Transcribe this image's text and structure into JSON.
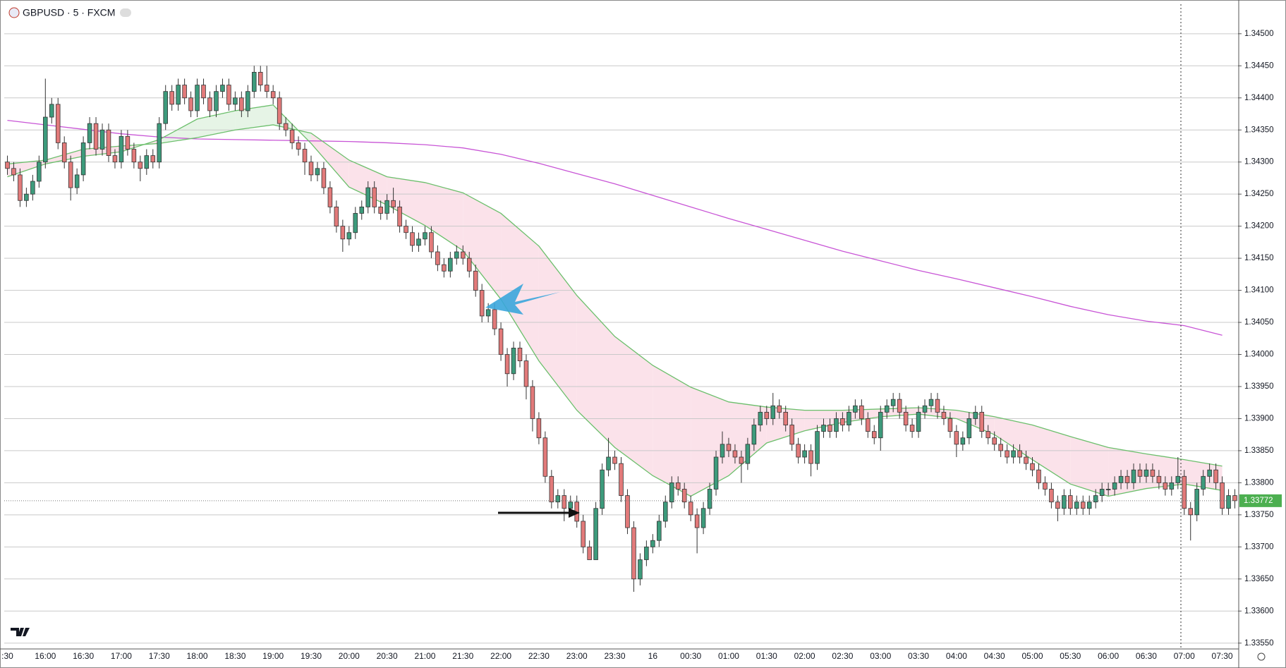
{
  "chart_data": {
    "type": "candlestick",
    "title": "GBPUSD · 5 · FXCM",
    "categories": [
      ":30",
      null,
      null,
      null,
      null,
      null,
      "16:00",
      null,
      null,
      null,
      null,
      null,
      "16:30",
      null,
      null,
      null,
      null,
      null,
      "17:00",
      null,
      null,
      null,
      null,
      null,
      "17:30",
      null,
      null,
      null,
      null,
      null,
      "18:00",
      null,
      null,
      null,
      null,
      null,
      "18:30",
      null,
      null,
      null,
      null,
      null,
      "19:00",
      null,
      null,
      null,
      null,
      null,
      "19:30",
      null,
      null,
      null,
      null,
      null,
      "20:00",
      null,
      null,
      null,
      null,
      null,
      "20:30",
      null,
      null,
      null,
      null,
      null,
      "21:00",
      null,
      null,
      null,
      null,
      null,
      "21:30",
      null,
      null,
      null,
      null,
      null,
      "22:00",
      null,
      null,
      null,
      null,
      null,
      "22:30",
      null,
      null,
      null,
      null,
      null,
      "23:00",
      null,
      null,
      null,
      null,
      null,
      "23:30",
      null,
      null,
      null,
      null,
      null,
      "16",
      null,
      null,
      null,
      null,
      null,
      "00:30",
      null,
      null,
      null,
      null,
      null,
      "01:00",
      null,
      null,
      null,
      null,
      null,
      "01:30",
      null,
      null,
      null,
      null,
      null,
      "02:00",
      null,
      null,
      null,
      null,
      null,
      "02:30",
      null,
      null,
      null,
      null,
      null,
      "03:00",
      null,
      null,
      null,
      null,
      null,
      "03:30",
      null,
      null,
      null,
      null,
      null,
      "04:00",
      null,
      null,
      null,
      null,
      null,
      "04:30",
      null,
      null,
      null,
      null,
      null,
      "05:00",
      null,
      null,
      null,
      null,
      null,
      "05:30",
      null,
      null,
      null,
      null,
      null,
      "06:00",
      null,
      null,
      null,
      null,
      null,
      "06:30",
      null,
      null,
      null,
      null,
      null,
      "07:00",
      null,
      null,
      null,
      null,
      null,
      "07:30",
      null,
      null
    ],
    "open": [
      1.343,
      1.3429,
      1.3428,
      1.3424,
      1.3425,
      1.3427,
      1.343,
      1.3437,
      1.3439,
      1.3433,
      1.343,
      1.3426,
      1.3428,
      1.3433,
      1.3436,
      1.3432,
      1.3435,
      1.3431,
      1.343,
      1.3434,
      1.3432,
      1.343,
      1.3429,
      1.3431,
      1.343,
      1.3436,
      1.3441,
      1.3439,
      1.3442,
      1.344,
      1.3438,
      1.3442,
      1.344,
      1.3438,
      1.3441,
      1.3442,
      1.3439,
      1.344,
      1.3438,
      1.3441,
      1.3444,
      1.3442,
      1.3441,
      1.344,
      1.3436,
      1.3435,
      1.3433,
      1.3432,
      1.343,
      1.3428,
      1.3429,
      1.3426,
      1.3423,
      1.342,
      1.3418,
      1.3419,
      1.3422,
      1.3423,
      1.3426,
      1.3423,
      1.3422,
      1.3424,
      1.3423,
      1.342,
      1.3419,
      1.3417,
      1.3418,
      1.3419,
      1.3416,
      1.3414,
      1.3413,
      1.3415,
      1.3416,
      1.3415,
      1.3413,
      1.341,
      1.3406,
      1.3407,
      1.3404,
      1.34,
      1.3397,
      1.3401,
      1.3399,
      1.3395,
      1.339,
      1.3387,
      1.3381,
      1.3377,
      1.3378,
      1.3376,
      1.3377,
      1.3374,
      1.337,
      1.3368,
      1.3376,
      1.3382,
      1.3384,
      1.3383,
      1.3378,
      1.3373,
      1.3365,
      1.3368,
      1.337,
      1.3371,
      1.3374,
      1.3377,
      1.338,
      1.3379,
      1.3377,
      1.3375,
      1.3373,
      1.3376,
      1.3379,
      1.3384,
      1.3386,
      1.3385,
      1.3384,
      1.3383,
      1.3386,
      1.3389,
      1.3391,
      1.339,
      1.3392,
      1.3391,
      1.3389,
      1.3386,
      1.3384,
      1.3385,
      1.3383,
      1.3388,
      1.3389,
      1.3388,
      1.339,
      1.3389,
      1.3391,
      1.3392,
      1.339,
      1.3388,
      1.3387,
      1.3391,
      1.3392,
      1.3393,
      1.3391,
      1.3389,
      1.3388,
      1.3391,
      1.3392,
      1.3393,
      1.3391,
      1.339,
      1.3388,
      1.3386,
      1.3387,
      1.339,
      1.3391,
      1.3388,
      1.3387,
      1.3386,
      1.3385,
      1.3384,
      1.3385,
      1.3384,
      1.3383,
      1.3382,
      1.338,
      1.3379,
      1.3377,
      1.3376,
      1.3378,
      1.3376,
      1.3377,
      1.3376,
      1.3377,
      1.3378,
      1.3379,
      1.3379,
      1.338,
      1.3381,
      1.338,
      1.3382,
      1.3381,
      1.3382,
      1.3381,
      1.338,
      1.3379,
      1.338,
      1.3381,
      1.3376,
      1.3375,
      1.3379,
      1.3381,
      1.3382,
      1.338,
      1.3376,
      1.3378
    ],
    "high": [
      1.3431,
      1.343,
      1.3429,
      1.3426,
      1.3428,
      1.3431,
      1.3443,
      1.344,
      1.344,
      1.3434,
      1.3431,
      1.3429,
      1.3434,
      1.3437,
      1.3437,
      1.3436,
      1.3436,
      1.3432,
      1.3435,
      1.3435,
      1.3433,
      1.3431,
      1.3432,
      1.3432,
      1.3437,
      1.3442,
      1.3442,
      1.3443,
      1.3443,
      1.3441,
      1.3443,
      1.3443,
      1.3441,
      1.3442,
      1.3443,
      1.3443,
      1.3441,
      1.3441,
      1.3442,
      1.3445,
      1.3445,
      1.3445,
      1.3442,
      1.3441,
      1.3437,
      1.3436,
      1.3434,
      1.3433,
      1.3431,
      1.343,
      1.343,
      1.3427,
      1.3424,
      1.3421,
      1.342,
      1.3423,
      1.3424,
      1.3427,
      1.3427,
      1.3424,
      1.3425,
      1.3426,
      1.3424,
      1.3421,
      1.342,
      1.3419,
      1.342,
      1.342,
      1.3417,
      1.3415,
      1.3416,
      1.3417,
      1.3417,
      1.3416,
      1.3414,
      1.3411,
      1.3408,
      1.3408,
      1.3405,
      1.3401,
      1.3402,
      1.3402,
      1.34,
      1.3396,
      1.3391,
      1.3388,
      1.3382,
      1.3379,
      1.3379,
      1.3378,
      1.3378,
      1.3375,
      1.3371,
      1.3377,
      1.3383,
      1.3387,
      1.3385,
      1.3384,
      1.3379,
      1.3374,
      1.3369,
      1.3371,
      1.3372,
      1.3375,
      1.3378,
      1.3381,
      1.3381,
      1.338,
      1.3378,
      1.3376,
      1.3377,
      1.338,
      1.3385,
      1.3388,
      1.3387,
      1.3386,
      1.3385,
      1.3387,
      1.339,
      1.3392,
      1.3392,
      1.3394,
      1.3393,
      1.3392,
      1.339,
      1.3387,
      1.3386,
      1.3386,
      1.3389,
      1.339,
      1.339,
      1.3391,
      1.3391,
      1.3392,
      1.3393,
      1.3393,
      1.3391,
      1.3389,
      1.3392,
      1.3393,
      1.3394,
      1.3394,
      1.3392,
      1.339,
      1.3392,
      1.3393,
      1.3394,
      1.3394,
      1.3392,
      1.3391,
      1.3389,
      1.3388,
      1.3391,
      1.3392,
      1.3392,
      1.3389,
      1.3388,
      1.3387,
      1.3386,
      1.3386,
      1.3386,
      1.3385,
      1.3384,
      1.3383,
      1.3381,
      1.338,
      1.3378,
      1.3379,
      1.3379,
      1.3378,
      1.3378,
      1.3378,
      1.3379,
      1.338,
      1.338,
      1.3381,
      1.3382,
      1.3382,
      1.3383,
      1.3383,
      1.3383,
      1.3383,
      1.3382,
      1.3381,
      1.3381,
      1.3384,
      1.3382,
      1.3377,
      1.338,
      1.3382,
      1.3383,
      1.3383,
      1.3381,
      1.3379,
      1.3379
    ],
    "low": [
      1.3428,
      1.3427,
      1.3423,
      1.3423,
      1.3424,
      1.3426,
      1.3429,
      1.3436,
      1.3432,
      1.3429,
      1.3424,
      1.3425,
      1.3427,
      1.3432,
      1.3431,
      1.3431,
      1.343,
      1.3429,
      1.3429,
      1.3431,
      1.3429,
      1.3427,
      1.3428,
      1.3429,
      1.3429,
      1.3435,
      1.3438,
      1.3438,
      1.3439,
      1.3437,
      1.3437,
      1.3439,
      1.3437,
      1.3437,
      1.344,
      1.3438,
      1.3438,
      1.3437,
      1.3437,
      1.344,
      1.3441,
      1.344,
      1.3439,
      1.3435,
      1.3434,
      1.3432,
      1.3431,
      1.3428,
      1.3427,
      1.3427,
      1.3425,
      1.3422,
      1.3419,
      1.3416,
      1.3417,
      1.3418,
      1.3421,
      1.3422,
      1.3422,
      1.3421,
      1.3421,
      1.3422,
      1.3419,
      1.3418,
      1.3416,
      1.3416,
      1.3417,
      1.3415,
      1.3413,
      1.3412,
      1.3412,
      1.3414,
      1.3414,
      1.3412,
      1.3409,
      1.3405,
      1.3405,
      1.3403,
      1.3399,
      1.3395,
      1.3396,
      1.3398,
      1.3393,
      1.3388,
      1.3386,
      1.338,
      1.3376,
      1.3376,
      1.3374,
      1.3375,
      1.3373,
      1.3369,
      1.3368,
      1.3368,
      1.3375,
      1.3381,
      1.3382,
      1.3377,
      1.3372,
      1.3363,
      1.3364,
      1.3367,
      1.3369,
      1.337,
      1.3373,
      1.3376,
      1.3378,
      1.3376,
      1.3374,
      1.3369,
      1.3372,
      1.3375,
      1.3378,
      1.3383,
      1.3384,
      1.3383,
      1.338,
      1.3382,
      1.3385,
      1.3388,
      1.3389,
      1.3389,
      1.339,
      1.3388,
      1.3385,
      1.3383,
      1.3383,
      1.3381,
      1.3382,
      1.3387,
      1.3387,
      1.3387,
      1.3388,
      1.3388,
      1.339,
      1.3389,
      1.3387,
      1.3386,
      1.3385,
      1.339,
      1.3391,
      1.339,
      1.3388,
      1.3387,
      1.3387,
      1.339,
      1.3391,
      1.339,
      1.3389,
      1.3387,
      1.3384,
      1.3385,
      1.3386,
      1.3389,
      1.3387,
      1.3386,
      1.3385,
      1.3384,
      1.3383,
      1.3383,
      1.3383,
      1.3382,
      1.3381,
      1.3379,
      1.3378,
      1.3376,
      1.3374,
      1.3375,
      1.3375,
      1.3375,
      1.3375,
      1.3375,
      1.3376,
      1.3377,
      1.3378,
      1.3378,
      1.3379,
      1.3379,
      1.3379,
      1.338,
      1.338,
      1.338,
      1.3379,
      1.3378,
      1.3378,
      1.3379,
      1.3375,
      1.3371,
      1.3374,
      1.3378,
      1.338,
      1.3379,
      1.3375,
      1.3375,
      1.3376
    ],
    "close": [
      1.3429,
      1.3428,
      1.3424,
      1.3425,
      1.3427,
      1.343,
      1.3437,
      1.3439,
      1.3433,
      1.343,
      1.3426,
      1.3428,
      1.3433,
      1.3436,
      1.3432,
      1.3435,
      1.3431,
      1.343,
      1.3434,
      1.3432,
      1.343,
      1.3429,
      1.3431,
      1.343,
      1.3436,
      1.3441,
      1.3439,
      1.3442,
      1.344,
      1.3438,
      1.3442,
      1.344,
      1.3438,
      1.3441,
      1.3442,
      1.3439,
      1.344,
      1.3438,
      1.3441,
      1.3444,
      1.3442,
      1.3441,
      1.344,
      1.3436,
      1.3435,
      1.3433,
      1.3432,
      1.343,
      1.3428,
      1.3429,
      1.3426,
      1.3423,
      1.342,
      1.3418,
      1.3419,
      1.3422,
      1.3423,
      1.3426,
      1.3423,
      1.3422,
      1.3424,
      1.3423,
      1.342,
      1.3419,
      1.3417,
      1.3418,
      1.3419,
      1.3416,
      1.3414,
      1.3413,
      1.3415,
      1.3416,
      1.3415,
      1.3413,
      1.341,
      1.3406,
      1.3407,
      1.3404,
      1.34,
      1.3397,
      1.3401,
      1.3399,
      1.3395,
      1.339,
      1.3387,
      1.3381,
      1.3377,
      1.3378,
      1.3376,
      1.3377,
      1.3374,
      1.337,
      1.3368,
      1.3376,
      1.3382,
      1.3384,
      1.3383,
      1.3378,
      1.3373,
      1.3365,
      1.3368,
      1.337,
      1.3371,
      1.3374,
      1.3377,
      1.338,
      1.3379,
      1.3377,
      1.3375,
      1.3373,
      1.3376,
      1.3379,
      1.3384,
      1.3386,
      1.3385,
      1.3384,
      1.3383,
      1.3386,
      1.3389,
      1.3391,
      1.339,
      1.3392,
      1.3391,
      1.3389,
      1.3386,
      1.3384,
      1.3385,
      1.3383,
      1.3388,
      1.3389,
      1.3388,
      1.339,
      1.3389,
      1.3391,
      1.3392,
      1.339,
      1.3388,
      1.3387,
      1.3391,
      1.3392,
      1.3393,
      1.3391,
      1.3389,
      1.3388,
      1.3391,
      1.3392,
      1.3393,
      1.3391,
      1.339,
      1.3388,
      1.3386,
      1.3387,
      1.339,
      1.3391,
      1.3388,
      1.3387,
      1.3386,
      1.3385,
      1.3384,
      1.3385,
      1.3384,
      1.3383,
      1.3382,
      1.338,
      1.3379,
      1.3377,
      1.3376,
      1.3378,
      1.3376,
      1.3377,
      1.3376,
      1.3377,
      1.3378,
      1.3379,
      1.3379,
      1.338,
      1.3381,
      1.338,
      1.3382,
      1.3381,
      1.3382,
      1.3381,
      1.338,
      1.3379,
      1.338,
      1.3381,
      1.3376,
      1.3375,
      1.3379,
      1.3381,
      1.3382,
      1.338,
      1.3376,
      1.3378,
      1.33772
    ],
    "up_color": "#3d9b7c",
    "down_color": "#e27a7a",
    "wick_color": "#333333",
    "ylim": [
      1.33542,
      1.34546
    ],
    "yticks": [
      {
        "value": 1.3355,
        "label": "1.33550"
      },
      {
        "value": 1.336,
        "label": "1.33600"
      },
      {
        "value": 1.3365,
        "label": "1.33650"
      },
      {
        "value": 1.337,
        "label": "1.33700"
      },
      {
        "value": 1.3375,
        "label": "1.33750"
      },
      {
        "value": 1.338,
        "label": "1.33800"
      },
      {
        "value": 1.3385,
        "label": "1.33850"
      },
      {
        "value": 1.339,
        "label": "1.33900"
      },
      {
        "value": 1.3395,
        "label": "1.33950"
      },
      {
        "value": 1.34,
        "label": "1.34000"
      },
      {
        "value": 1.3405,
        "label": "1.34050"
      },
      {
        "value": 1.341,
        "label": "1.34100"
      },
      {
        "value": 1.3415,
        "label": "1.34150"
      },
      {
        "value": 1.342,
        "label": "1.34200"
      },
      {
        "value": 1.3425,
        "label": "1.34250"
      },
      {
        "value": 1.343,
        "label": "1.34300"
      },
      {
        "value": 1.3435,
        "label": "1.34350"
      },
      {
        "value": 1.344,
        "label": "1.34400"
      },
      {
        "value": 1.3445,
        "label": "1.34450"
      },
      {
        "value": 1.345,
        "label": "1.34500"
      }
    ],
    "grid": true,
    "last_price_label": "1.33772",
    "last_price_color": "#4caf50",
    "overlay_x": [
      ":30",
      "16:00",
      "16:30",
      "17:00",
      "17:30",
      "18:00",
      "18:30",
      "19:00",
      "19:30",
      "20:00",
      "20:30",
      "21:00",
      "21:30",
      "22:00",
      "22:30",
      "23:00",
      "23:30",
      "16",
      "00:30",
      "01:00",
      "01:30",
      "02:00",
      "02:30",
      "03:00",
      "03:30",
      "04:00",
      "04:30",
      "05:00",
      "05:30",
      "06:00",
      "06:30",
      "07:00",
      "07:30"
    ],
    "overlays": [
      {
        "color": "#c855d6",
        "values": [
          1.34365,
          1.34358,
          1.34351,
          1.34344,
          1.34339,
          1.34336,
          1.34335,
          1.34334,
          1.34333,
          1.34332,
          1.3433,
          1.34327,
          1.34322,
          1.34312,
          1.34298,
          1.34282,
          1.34266,
          1.34248,
          1.3423,
          1.34212,
          1.34195,
          1.34178,
          1.34161,
          1.34146,
          1.34131,
          1.34118,
          1.34104,
          1.3409,
          1.34075,
          1.34062,
          1.34052,
          1.34045,
          1.3403
        ]
      },
      {
        "color": "#6cbf6c",
        "values": [
          1.34277,
          1.34297,
          1.34309,
          1.34316,
          1.34335,
          1.34367,
          1.3438,
          1.34389,
          1.34329,
          1.34261,
          1.34233,
          1.34201,
          1.34162,
          1.34086,
          1.3399,
          1.33913,
          1.33855,
          1.33811,
          1.33779,
          1.33811,
          1.33862,
          1.33881,
          1.33894,
          1.33903,
          1.33907,
          1.339,
          1.33875,
          1.33836,
          1.33798,
          1.33779,
          1.33791,
          1.33798,
          1.33788
        ]
      },
      {
        "color": "#6cbf6c",
        "values": [
          1.34297,
          1.34303,
          1.3432,
          1.34325,
          1.34329,
          1.34338,
          1.3435,
          1.34358,
          1.34345,
          1.34303,
          1.34277,
          1.34268,
          1.34252,
          1.3422,
          1.34169,
          1.34092,
          1.34028,
          1.33983,
          1.33949,
          1.33926,
          1.33918,
          1.33913,
          1.33913,
          1.33915,
          1.33917,
          1.33913,
          1.33903,
          1.3389,
          1.33872,
          1.33855,
          1.33845,
          1.33836,
          1.33826
        ]
      }
    ],
    "band_fill_above": "#e6f4e6",
    "band_fill_below": "#fbe2ea"
  }
}
